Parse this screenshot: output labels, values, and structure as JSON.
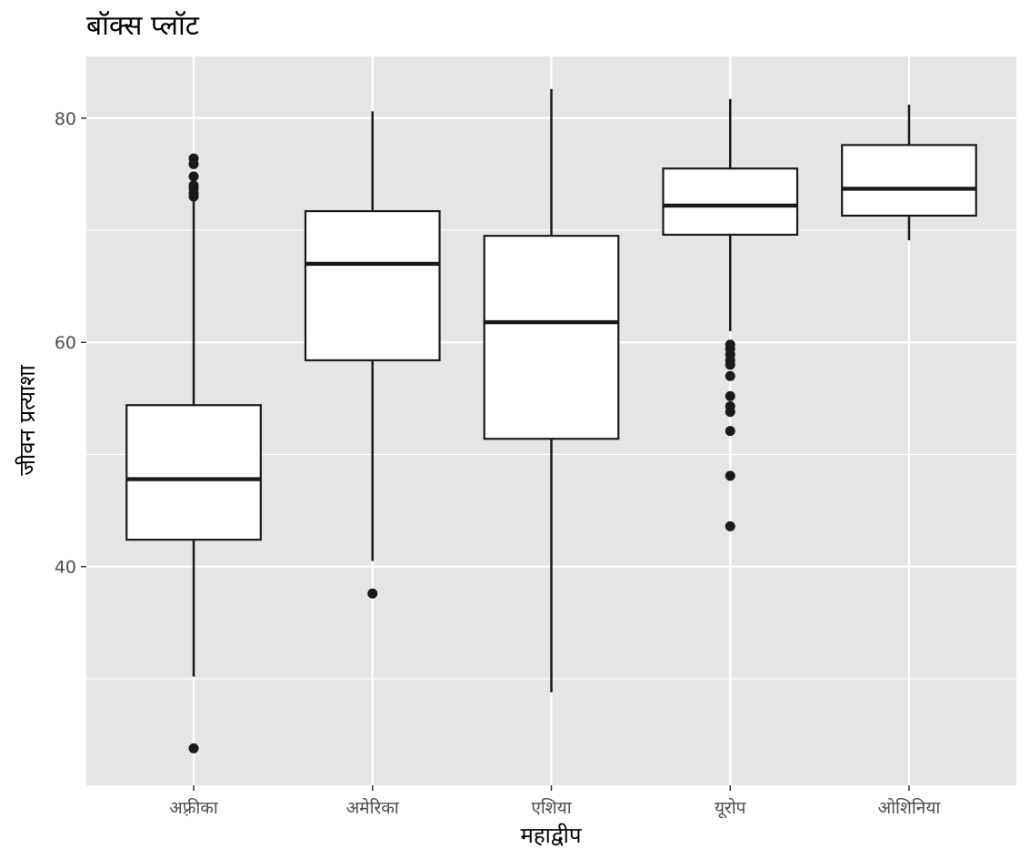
{
  "chart_data": {
    "type": "box",
    "title": "बॉक्स प्लॉट",
    "xlabel": "महाद्वीप",
    "ylabel": "जीवन प्रत्याशा",
    "ylim": [
      20.5,
      85.5
    ],
    "yticks": [
      40,
      60,
      80
    ],
    "grid": true,
    "legend": "none",
    "colors": {
      "panel": "#e5e5e5",
      "grid": "#ffffff",
      "box_fill": "#ffffff",
      "box_stroke": "#1a1a1a",
      "outlier": "#1a1a1a",
      "tick_label": "#4d4d4d"
    },
    "categories": [
      "अफ़्रीका",
      "अमेरिका",
      "एशिया",
      "यूरोप",
      "ओशिनिया"
    ],
    "boxes": [
      {
        "category": "अफ़्रीका",
        "whisker_low": 30.2,
        "q1": 42.4,
        "median": 47.8,
        "q3": 54.4,
        "whisker_high": 72.8,
        "outliers": [
          23.8,
          73.0,
          73.3,
          73.7,
          74.0,
          74.8,
          75.9,
          76.4
        ]
      },
      {
        "category": "अमेरिका",
        "whisker_low": 40.5,
        "q1": 58.4,
        "median": 67.0,
        "q3": 71.7,
        "whisker_high": 80.6,
        "outliers": [
          37.6
        ]
      },
      {
        "category": "एशिया",
        "whisker_low": 28.8,
        "q1": 51.4,
        "median": 61.8,
        "q3": 69.5,
        "whisker_high": 82.6,
        "outliers": []
      },
      {
        "category": "यूरोप",
        "whisker_low": 61.0,
        "q1": 69.6,
        "median": 72.2,
        "q3": 75.5,
        "whisker_high": 81.7,
        "outliers": [
          43.6,
          48.1,
          52.1,
          53.8,
          54.3,
          55.2,
          57.0,
          58.0,
          58.4,
          58.9,
          59.4,
          59.8
        ]
      },
      {
        "category": "ओशिनिया",
        "whisker_low": 69.1,
        "q1": 71.3,
        "median": 73.7,
        "q3": 77.6,
        "whisker_high": 81.2,
        "outliers": []
      }
    ]
  }
}
